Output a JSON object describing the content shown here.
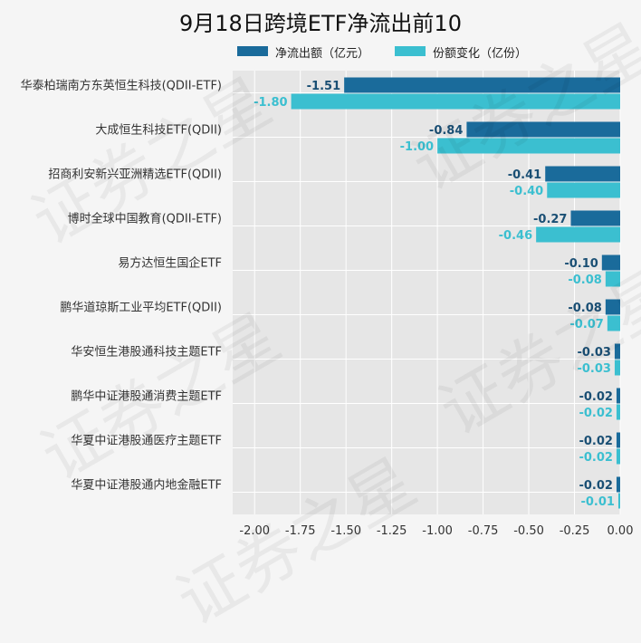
{
  "title": "9月18日跨境ETF净流出前10",
  "watermark": "证券之星",
  "colors": {
    "background": "#f5f5f5",
    "plot_background": "#e6e6e6",
    "grid": "#ffffff",
    "net_outflow": "#1a6b9b",
    "share_change": "#3bbfd0"
  },
  "chart_data": {
    "type": "bar",
    "orientation": "horizontal",
    "title": "9月18日跨境ETF净流出前10",
    "categories": [
      "华泰柏瑞南方东英恒生科技(QDII-ETF)",
      "大成恒生科技ETF(QDII)",
      "招商利安新兴亚洲精选ETF(QDII)",
      "博时全球中国教育(QDII-ETF)",
      "易方达恒生国企ETF",
      "鹏华道琼斯工业平均ETF(QDII)",
      "华安恒生港股通科技主题ETF",
      "鹏华中证港股通消费主题ETF",
      "华夏中证港股通医疗主题ETF",
      "华夏中证港股通内地金融ETF"
    ],
    "series": [
      {
        "name": "净流出额（亿元）",
        "values": [
          -1.51,
          -0.84,
          -0.41,
          -0.27,
          -0.1,
          -0.08,
          -0.03,
          -0.02,
          -0.02,
          -0.02
        ]
      },
      {
        "name": "份额变化（亿份）",
        "values": [
          -1.8,
          -1.0,
          -0.4,
          -0.46,
          -0.08,
          -0.07,
          -0.03,
          -0.02,
          -0.02,
          -0.01
        ]
      }
    ],
    "xlim": [
      -2.12,
      0.0
    ],
    "xticks": [
      -2.0,
      -1.75,
      -1.5,
      -1.25,
      -1.0,
      -0.75,
      -0.5,
      -0.25,
      0.0
    ],
    "xtick_labels": [
      "-2.00",
      "-1.75",
      "-1.50",
      "-1.25",
      "-1.00",
      "-0.75",
      "-0.50",
      "-0.25",
      "0.00"
    ],
    "data_labels": [
      [
        "-1.51",
        "-0.84",
        "-0.41",
        "-0.27",
        "-0.10",
        "-0.08",
        "-0.03",
        "-0.02",
        "-0.02",
        "-0.02"
      ],
      [
        "-1.80",
        "-1.00",
        "-0.40",
        "-0.46",
        "-0.08",
        "-0.07",
        "-0.03",
        "-0.02",
        "-0.02",
        "-0.01"
      ]
    ],
    "legend": "top",
    "grid": true
  }
}
